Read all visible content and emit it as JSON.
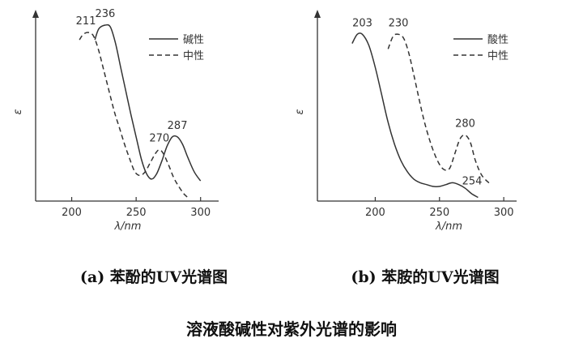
{
  "figure": {
    "caption_a": "(a) 苯酚的UV光谱图",
    "caption_b": "(b) 苯胺的UV光谱图",
    "main_title": "溶液酸碱性对紫外光谱的影响"
  },
  "chart_data": [
    {
      "type": "line",
      "title": "(a) 苯酚的UV光谱图",
      "xlabel": "λ/nm",
      "ylabel": "ε",
      "xlim": [
        172,
        314
      ],
      "ylim": [
        0,
        100
      ],
      "xticks": [
        200,
        250,
        300
      ],
      "grid": false,
      "legend_position": "top-right",
      "series": [
        {
          "name": "碱性",
          "style": "solid",
          "x": [
            218,
            221,
            226,
            230,
            234,
            238,
            242,
            246,
            250,
            254,
            258,
            262,
            266,
            270,
            274,
            278,
            282,
            286,
            290,
            295,
            300
          ],
          "y": [
            88,
            94,
            96,
            95,
            86,
            73,
            60,
            47,
            35,
            23,
            15,
            12,
            15,
            22,
            30,
            35,
            35,
            31,
            24,
            16,
            11
          ]
        },
        {
          "name": "中性",
          "style": "dashed",
          "x": [
            206,
            209,
            213,
            217,
            221,
            225,
            229,
            233,
            237,
            241,
            245,
            249,
            253,
            257,
            261,
            265,
            268,
            271,
            275,
            279,
            283,
            287,
            290
          ],
          "y": [
            88,
            91,
            92,
            90,
            82,
            71,
            60,
            49,
            40,
            31,
            23,
            16,
            14,
            16,
            21,
            26,
            28,
            26,
            20,
            13,
            8,
            4,
            2
          ]
        }
      ],
      "annotations": [
        {
          "text": "211",
          "x": 211,
          "y": 92
        },
        {
          "text": "236",
          "x": 226,
          "y": 96
        },
        {
          "text": "270",
          "x": 268,
          "y": 28
        },
        {
          "text": "287",
          "x": 282,
          "y": 35
        }
      ]
    },
    {
      "type": "line",
      "title": "(b) 苯胺的UV光谱图",
      "xlabel": "λ/nm",
      "ylabel": "ε",
      "xlim": [
        155,
        310
      ],
      "ylim": [
        0,
        100
      ],
      "xticks": [
        200,
        250,
        300
      ],
      "grid": false,
      "legend_position": "top-right",
      "series": [
        {
          "name": "酸性",
          "style": "solid",
          "x": [
            182,
            186,
            190,
            195,
            200,
            205,
            210,
            215,
            220,
            225,
            230,
            235,
            240,
            245,
            250,
            255,
            260,
            265,
            270,
            275,
            280
          ],
          "y": [
            86,
            91,
            91,
            85,
            73,
            58,
            43,
            31,
            22,
            16,
            12,
            10,
            9,
            8,
            8,
            9,
            10,
            9,
            7,
            4,
            2
          ]
        },
        {
          "name": "中性",
          "style": "dashed",
          "x": [
            210,
            214,
            218,
            222,
            226,
            230,
            234,
            238,
            242,
            246,
            250,
            254,
            258,
            262,
            266,
            270,
            274,
            278,
            283,
            290
          ],
          "y": [
            83,
            90,
            91,
            89,
            81,
            69,
            56,
            44,
            34,
            26,
            20,
            17,
            18,
            26,
            34,
            36,
            32,
            22,
            14,
            9
          ]
        }
      ],
      "annotations": [
        {
          "text": "203",
          "x": 190,
          "y": 91
        },
        {
          "text": "230",
          "x": 218,
          "y": 91
        },
        {
          "text": "280",
          "x": 270,
          "y": 36
        },
        {
          "text": "254",
          "x": 260,
          "y": 10
        }
      ]
    }
  ]
}
